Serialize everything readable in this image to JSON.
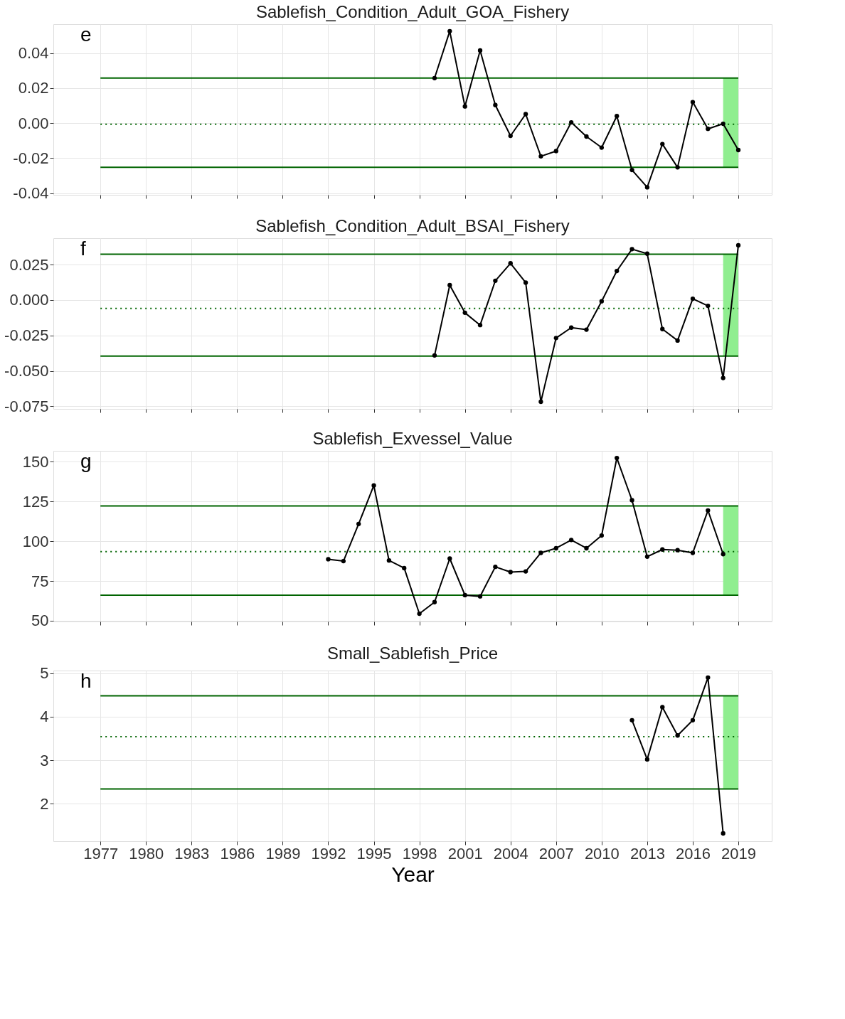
{
  "chart_data": [
    {
      "type": "line",
      "title": "Sablefish_Condition_Adult_GOA_Fishery",
      "annotations": [
        "e"
      ],
      "marker": "circle",
      "grid": true,
      "tick_labels": "y",
      "x": [
        1999,
        2000,
        2001,
        2002,
        2003,
        2004,
        2005,
        2006,
        2007,
        2008,
        2009,
        2010,
        2011,
        2012,
        2013,
        2014,
        2015,
        2016,
        2017,
        2018,
        2019
      ],
      "series": [
        {
          "color": "#000000",
          "values": [
            0.0257,
            0.0525,
            0.0095,
            0.0415,
            0.0103,
            -0.0073,
            0.0051,
            -0.019,
            -0.016,
            0.0004,
            -0.0077,
            -0.014,
            0.004,
            -0.0268,
            -0.0367,
            -0.012,
            -0.0253,
            0.012,
            -0.0033,
            -0.0004,
            -0.0154
          ]
        }
      ],
      "xlim": [
        1973.9,
        2021.2
      ],
      "xticks": [
        1977,
        1980,
        1983,
        1986,
        1989,
        1992,
        1995,
        1998,
        2001,
        2004,
        2007,
        2010,
        2013,
        2016,
        2019
      ],
      "ylim": [
        -0.041,
        0.0565
      ],
      "yticks": [
        {
          "value": -0.04,
          "label": "-0.04"
        },
        {
          "value": -0.02,
          "label": "-0.02"
        },
        {
          "value": 0,
          "label": "0.00"
        },
        {
          "value": 0.02,
          "label": "0.02"
        },
        {
          "value": 0.04,
          "label": "0.04"
        }
      ],
      "ref_lines": [
        {
          "axis": "y",
          "value": 0.0257,
          "color": "#006400",
          "line_style": "solid"
        },
        {
          "axis": "y",
          "value": -0.0007,
          "color": "#006400",
          "line_style": "dotted"
        },
        {
          "axis": "y",
          "value": -0.0253,
          "color": "#006400",
          "line_style": "solid"
        }
      ],
      "bands": [
        {
          "axis": "x",
          "from": 2018,
          "to": 2019,
          "color": "#90ee90"
        }
      ]
    },
    {
      "type": "line",
      "title": "Sablefish_Condition_Adult_BSAI_Fishery",
      "annotations": [
        "f"
      ],
      "marker": "circle",
      "grid": true,
      "tick_labels": "y",
      "x": [
        1999,
        2000,
        2001,
        2002,
        2003,
        2004,
        2005,
        2006,
        2007,
        2008,
        2009,
        2010,
        2011,
        2012,
        2013,
        2014,
        2015,
        2016,
        2017,
        2018,
        2019
      ],
      "series": [
        {
          "color": "#000000",
          "values": [
            -0.0391,
            0.0105,
            -0.009,
            -0.0177,
            0.0136,
            0.0259,
            0.0123,
            -0.0718,
            -0.0268,
            -0.0195,
            -0.0209,
            -0.0009,
            0.0205,
            0.0359,
            0.0327,
            -0.0205,
            -0.0286,
            0.0009,
            -0.0041,
            -0.055,
            0.0386
          ]
        }
      ],
      "xlim": [
        1973.9,
        2021.2
      ],
      "xticks": [
        1977,
        1980,
        1983,
        1986,
        1989,
        1992,
        1995,
        1998,
        2001,
        2004,
        2007,
        2010,
        2013,
        2016,
        2019
      ],
      "ylim": [
        -0.0768,
        0.0436
      ],
      "yticks": [
        {
          "value": -0.075,
          "label": "-0.075"
        },
        {
          "value": -0.05,
          "label": "-0.050"
        },
        {
          "value": -0.025,
          "label": "-0.025"
        },
        {
          "value": 0,
          "label": "0.000"
        },
        {
          "value": 0.025,
          "label": "0.025"
        }
      ],
      "ref_lines": [
        {
          "axis": "y",
          "value": 0.0323,
          "color": "#006400",
          "line_style": "solid"
        },
        {
          "axis": "y",
          "value": -0.0059,
          "color": "#006400",
          "line_style": "dotted"
        },
        {
          "axis": "y",
          "value": -0.0395,
          "color": "#006400",
          "line_style": "solid"
        }
      ],
      "bands": [
        {
          "axis": "x",
          "from": 2018,
          "to": 2019,
          "color": "#90ee90"
        }
      ]
    },
    {
      "type": "line",
      "title": "Sablefish_Exvessel_Value",
      "annotations": [
        "g"
      ],
      "marker": "circle",
      "grid": true,
      "tick_labels": "y",
      "x": [
        1992,
        1993,
        1994,
        1995,
        1996,
        1997,
        1998,
        1999,
        2000,
        2001,
        2002,
        2003,
        2004,
        2005,
        2006,
        2007,
        2008,
        2009,
        2010,
        2011,
        2012,
        2013,
        2014,
        2015,
        2016,
        2017,
        2018
      ],
      "series": [
        {
          "color": "#000000",
          "values": [
            88.7,
            87.5,
            110.9,
            135.1,
            87.9,
            83.1,
            54.4,
            61.7,
            89.1,
            66.1,
            65.3,
            83.9,
            80.6,
            81,
            92.7,
            95.6,
            100.8,
            95.6,
            103.6,
            152.4,
            125.8,
            90.3,
            94.8,
            94.4,
            92.7,
            119.4,
            91.9
          ]
        }
      ],
      "xlim": [
        1973.9,
        2021.2
      ],
      "xticks": [
        1977,
        1980,
        1983,
        1986,
        1989,
        1992,
        1995,
        1998,
        2001,
        2004,
        2007,
        2010,
        2013,
        2016,
        2019
      ],
      "ylim": [
        49.5,
        156.9
      ],
      "yticks": [
        50,
        75,
        100,
        125,
        150
      ],
      "ref_lines": [
        {
          "axis": "y",
          "value": 122.2,
          "color": "#006400",
          "line_style": "solid"
        },
        {
          "axis": "y",
          "value": 93.5,
          "color": "#006400",
          "line_style": "dotted"
        },
        {
          "axis": "y",
          "value": 66.1,
          "color": "#006400",
          "line_style": "solid"
        }
      ],
      "bands": [
        {
          "axis": "x",
          "from": 2018,
          "to": 2019,
          "color": "#90ee90"
        }
      ]
    },
    {
      "type": "line",
      "title": "Small_Sablefish_Price",
      "annotations": [
        "h"
      ],
      "marker": "circle",
      "grid": true,
      "xlabel": "Year",
      "x": [
        2012,
        2013,
        2014,
        2015,
        2016,
        2017,
        2018
      ],
      "series": [
        {
          "color": "#000000",
          "values": [
            3.92,
            3.02,
            4.22,
            3.57,
            3.92,
            4.9,
            1.32
          ]
        }
      ],
      "xlim": [
        1973.9,
        2021.2
      ],
      "xticks": [
        1977,
        1980,
        1983,
        1986,
        1989,
        1992,
        1995,
        1998,
        2001,
        2004,
        2007,
        2010,
        2013,
        2016,
        2019
      ],
      "ylim": [
        1.14,
        5.06
      ],
      "yticks": [
        2,
        3,
        4,
        5
      ],
      "ref_lines": [
        {
          "axis": "y",
          "value": 4.48,
          "color": "#006400",
          "line_style": "solid"
        },
        {
          "axis": "y",
          "value": 3.54,
          "color": "#006400",
          "line_style": "dotted"
        },
        {
          "axis": "y",
          "value": 2.34,
          "color": "#006400",
          "line_style": "solid"
        }
      ],
      "bands": [
        {
          "axis": "x",
          "from": 2018,
          "to": 2019,
          "color": "#90ee90"
        }
      ]
    }
  ]
}
